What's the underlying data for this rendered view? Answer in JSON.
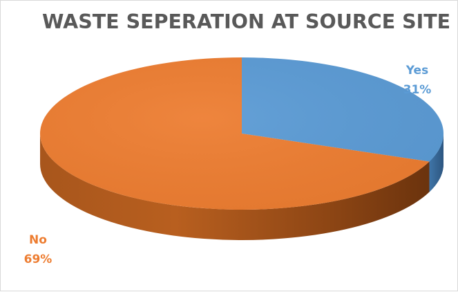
{
  "chart_data": {
    "type": "pie",
    "title": "WASTE SEPERATION AT SOURCE SITE",
    "three_d": true,
    "legend": "none",
    "slices": [
      {
        "label": "Yes",
        "value": 31,
        "value_label": "31%",
        "color": "#5b9bd5"
      },
      {
        "label": "No",
        "value": 69,
        "value_label": "69%",
        "color": "#ed7d31"
      }
    ]
  }
}
